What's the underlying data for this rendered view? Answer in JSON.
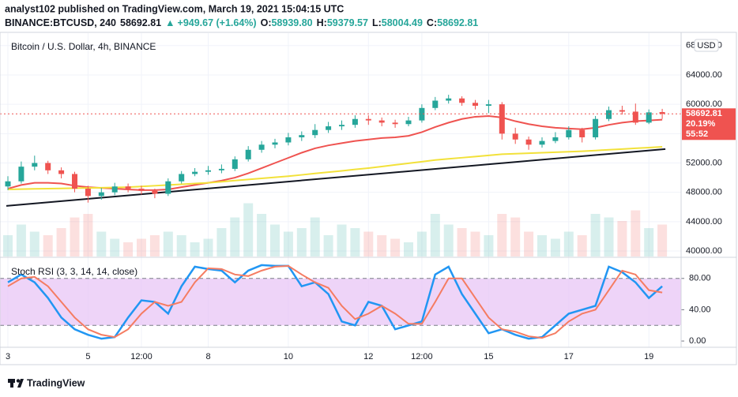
{
  "header": {
    "publisher": "analyst102 published on TradingView.com, March 19, 2021 15:04:15 UTC",
    "symbol": "BINANCE:BTCUSD, 240",
    "last": "58692.81",
    "change_arrow": "▲",
    "change": "+949.67 (+1.64%)",
    "ohlc": [
      {
        "key": "O:",
        "value": "58939.80"
      },
      {
        "key": "H:",
        "value": "59379.57"
      },
      {
        "key": "L:",
        "value": "58004.49"
      },
      {
        "key": "C:",
        "value": "58692.81"
      }
    ]
  },
  "chart_data": [
    {
      "type": "candlestick",
      "title": "Bitcoin / U.S. Dollar, 4h, BINANCE",
      "currency": "USD",
      "categories": [
        "3",
        null,
        null,
        null,
        null,
        null,
        "5",
        null,
        null,
        null,
        "12:00",
        null,
        null,
        null,
        null,
        "8",
        null,
        null,
        null,
        null,
        null,
        "10",
        null,
        null,
        null,
        null,
        null,
        "12",
        null,
        null,
        null,
        "12:00",
        null,
        null,
        null,
        null,
        "15",
        null,
        null,
        null,
        null,
        null,
        "17",
        null,
        null,
        null,
        null,
        null,
        "19",
        null
      ],
      "open": [
        48800,
        49500,
        51500,
        52000,
        51000,
        50500,
        48500,
        47500,
        48000,
        48800,
        48500,
        48200,
        47800,
        49500,
        50500,
        50800,
        51000,
        51200,
        52500,
        53800,
        54500,
        54800,
        55500,
        55800,
        56500,
        57000,
        57200,
        58000,
        57800,
        57500,
        57300,
        57800,
        59500,
        60500,
        60800,
        60200,
        59800,
        60000,
        56000,
        55200,
        54500,
        55000,
        55500,
        56500,
        55500,
        58000,
        59200,
        59000,
        57500,
        58939.8
      ],
      "high": [
        50200,
        52200,
        53000,
        52300,
        51400,
        50800,
        48900,
        48600,
        49300,
        49200,
        48900,
        48500,
        49900,
        50900,
        51300,
        51600,
        51800,
        52900,
        54300,
        55000,
        55300,
        56100,
        56300,
        57300,
        57600,
        57800,
        58500,
        58500,
        58200,
        57900,
        58300,
        60000,
        61000,
        61300,
        61100,
        60600,
        60600,
        60300,
        56800,
        55600,
        55500,
        56200,
        57000,
        56800,
        58400,
        59700,
        59800,
        60100,
        59300,
        59379.57
      ],
      "low": [
        48300,
        49200,
        51000,
        50500,
        49900,
        48000,
        46600,
        47000,
        47600,
        48000,
        47700,
        47200,
        47500,
        49200,
        50200,
        50400,
        50600,
        50900,
        52200,
        53400,
        54000,
        54400,
        55000,
        55400,
        56100,
        56500,
        56800,
        57200,
        57000,
        56800,
        57000,
        57500,
        59200,
        60100,
        59800,
        59300,
        58800,
        55200,
        54600,
        53800,
        54100,
        54700,
        55200,
        54800,
        55200,
        57700,
        58600,
        57200,
        57300,
        58004.49
      ],
      "close": [
        49500,
        51500,
        52000,
        51000,
        50500,
        48500,
        47500,
        48000,
        48800,
        48500,
        48200,
        47800,
        49500,
        50500,
        50800,
        51000,
        51200,
        52500,
        53800,
        54500,
        54800,
        55500,
        55800,
        56500,
        57000,
        57200,
        58000,
        57800,
        57500,
        57300,
        57800,
        59500,
        60500,
        60800,
        60200,
        59800,
        60000,
        56000,
        55200,
        54500,
        55000,
        55500,
        56500,
        55500,
        58000,
        59200,
        59000,
        57500,
        58900,
        58692.81
      ],
      "up_color": "#26a69a",
      "down_color": "#ef5350",
      "volume": [
        30,
        45,
        35,
        30,
        40,
        55,
        60,
        35,
        25,
        20,
        25,
        30,
        35,
        30,
        20,
        25,
        40,
        55,
        75,
        60,
        45,
        35,
        40,
        55,
        30,
        45,
        40,
        35,
        30,
        25,
        20,
        35,
        60,
        45,
        40,
        35,
        30,
        60,
        55,
        35,
        30,
        25,
        35,
        30,
        60,
        55,
        50,
        65,
        40,
        45
      ],
      "volume_ylim": [
        0,
        100
      ],
      "overlays": [
        {
          "color": "#ef5350",
          "values": [
            48500,
            49000,
            49300,
            49300,
            49200,
            48900,
            48700,
            48600,
            48500,
            48400,
            48300,
            48300,
            48400,
            48700,
            49000,
            49300,
            49600,
            50000,
            50600,
            51300,
            52000,
            52700,
            53400,
            54000,
            54400,
            54700,
            55000,
            55200,
            55400,
            55500,
            55700,
            56200,
            56900,
            57500,
            58000,
            58300,
            58400,
            58200,
            57700,
            57300,
            57000,
            56800,
            56700,
            56600,
            56800,
            57200,
            57500,
            57700,
            57800,
            57900
          ]
        },
        {
          "color": "#f2e13a",
          "values": [
            48400,
            48430,
            48470,
            48500,
            48530,
            48570,
            48600,
            48630,
            48670,
            48700,
            48800,
            48900,
            49000,
            49100,
            49200,
            49300,
            49450,
            49600,
            49750,
            49900,
            50050,
            50200,
            50380,
            50570,
            50750,
            50930,
            51120,
            51300,
            51520,
            51740,
            51960,
            52180,
            52400,
            52560,
            52720,
            52880,
            53040,
            53200,
            53270,
            53330,
            53400,
            53470,
            53530,
            53600,
            53700,
            53800,
            53900,
            54000,
            54100,
            54200
          ]
        }
      ],
      "trendline": {
        "color": "#131722",
        "values": [
          46150,
          53900
        ]
      },
      "last_price": {
        "value": 58692.81,
        "label": "58692.81"
      },
      "change_pct": "20.19%",
      "countdown": "55:52",
      "ylim": [
        39250,
        69700
      ],
      "yticks": [
        {
          "value": 40000,
          "label": "40000.00"
        },
        {
          "value": 44000,
          "label": "44000.00"
        },
        {
          "value": 48000,
          "label": "48000.00"
        },
        {
          "value": 52000,
          "label": "52000.00"
        },
        {
          "value": 56000,
          "label": "56000.00"
        },
        {
          "value": 60000,
          "label": "60000.00"
        },
        {
          "value": 64000,
          "label": "64000.00"
        },
        {
          "value": 68000,
          "label": "68000.00"
        }
      ],
      "grid": true
    },
    {
      "type": "line",
      "title": "Stoch RSI (3, 3, 14, 14, close)",
      "series": [
        {
          "color": "#2196f3",
          "values": [
            75,
            85,
            75,
            55,
            30,
            15,
            8,
            3,
            5,
            30,
            52,
            50,
            35,
            70,
            95,
            92,
            90,
            75,
            90,
            97,
            96,
            96,
            70,
            75,
            60,
            25,
            20,
            50,
            45,
            15,
            20,
            25,
            85,
            95,
            60,
            35,
            10,
            15,
            8,
            3,
            5,
            20,
            35,
            40,
            45,
            95,
            88,
            75,
            55,
            70
          ]
        },
        {
          "color": "#f57c62",
          "values": [
            70,
            80,
            82,
            70,
            50,
            30,
            15,
            8,
            5,
            15,
            35,
            50,
            45,
            50,
            75,
            93,
            92,
            85,
            83,
            90,
            95,
            96,
            85,
            75,
            68,
            45,
            28,
            35,
            45,
            35,
            22,
            22,
            50,
            80,
            80,
            55,
            30,
            15,
            12,
            6,
            4,
            10,
            25,
            35,
            40,
            65,
            90,
            85,
            65,
            62
          ]
        }
      ],
      "bands": [
        20,
        80
      ],
      "band_color": "#e8c6f5",
      "ylim": [
        -8,
        106
      ],
      "yticks": [
        {
          "value": 80,
          "label": "80.00"
        },
        {
          "value": 40,
          "label": "40.00"
        },
        {
          "value": 0,
          "label": "0.00"
        }
      ],
      "grid": true
    }
  ],
  "footer": {
    "brand": "TradingView"
  }
}
